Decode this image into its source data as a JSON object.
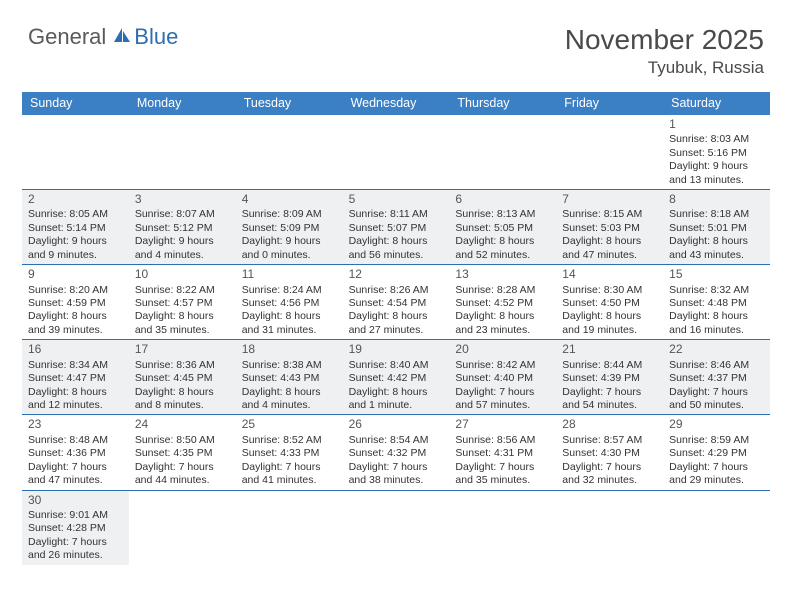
{
  "logo": {
    "general": "General",
    "blue": "Blue",
    "sail_color": "#2c6fb0"
  },
  "title": "November 2025",
  "location": "Tyubuk, Russia",
  "colors": {
    "header_bg": "#3b7fc4",
    "header_text": "#ffffff",
    "cell_border": "#2c6fb0",
    "shade_bg": "#eef0f1",
    "text": "#333333"
  },
  "day_names": [
    "Sunday",
    "Monday",
    "Tuesday",
    "Wednesday",
    "Thursday",
    "Friday",
    "Saturday"
  ],
  "weeks": [
    [
      {
        "blank": true
      },
      {
        "blank": true
      },
      {
        "blank": true
      },
      {
        "blank": true
      },
      {
        "blank": true
      },
      {
        "blank": true
      },
      {
        "day": "1",
        "sunrise": "Sunrise: 8:03 AM",
        "sunset": "Sunset: 5:16 PM",
        "daylight1": "Daylight: 9 hours",
        "daylight2": "and 13 minutes.",
        "shade": false
      }
    ],
    [
      {
        "day": "2",
        "sunrise": "Sunrise: 8:05 AM",
        "sunset": "Sunset: 5:14 PM",
        "daylight1": "Daylight: 9 hours",
        "daylight2": "and 9 minutes.",
        "shade": true
      },
      {
        "day": "3",
        "sunrise": "Sunrise: 8:07 AM",
        "sunset": "Sunset: 5:12 PM",
        "daylight1": "Daylight: 9 hours",
        "daylight2": "and 4 minutes.",
        "shade": true
      },
      {
        "day": "4",
        "sunrise": "Sunrise: 8:09 AM",
        "sunset": "Sunset: 5:09 PM",
        "daylight1": "Daylight: 9 hours",
        "daylight2": "and 0 minutes.",
        "shade": true
      },
      {
        "day": "5",
        "sunrise": "Sunrise: 8:11 AM",
        "sunset": "Sunset: 5:07 PM",
        "daylight1": "Daylight: 8 hours",
        "daylight2": "and 56 minutes.",
        "shade": true
      },
      {
        "day": "6",
        "sunrise": "Sunrise: 8:13 AM",
        "sunset": "Sunset: 5:05 PM",
        "daylight1": "Daylight: 8 hours",
        "daylight2": "and 52 minutes.",
        "shade": true
      },
      {
        "day": "7",
        "sunrise": "Sunrise: 8:15 AM",
        "sunset": "Sunset: 5:03 PM",
        "daylight1": "Daylight: 8 hours",
        "daylight2": "and 47 minutes.",
        "shade": true
      },
      {
        "day": "8",
        "sunrise": "Sunrise: 8:18 AM",
        "sunset": "Sunset: 5:01 PM",
        "daylight1": "Daylight: 8 hours",
        "daylight2": "and 43 minutes.",
        "shade": true
      }
    ],
    [
      {
        "day": "9",
        "sunrise": "Sunrise: 8:20 AM",
        "sunset": "Sunset: 4:59 PM",
        "daylight1": "Daylight: 8 hours",
        "daylight2": "and 39 minutes.",
        "shade": false
      },
      {
        "day": "10",
        "sunrise": "Sunrise: 8:22 AM",
        "sunset": "Sunset: 4:57 PM",
        "daylight1": "Daylight: 8 hours",
        "daylight2": "and 35 minutes.",
        "shade": false
      },
      {
        "day": "11",
        "sunrise": "Sunrise: 8:24 AM",
        "sunset": "Sunset: 4:56 PM",
        "daylight1": "Daylight: 8 hours",
        "daylight2": "and 31 minutes.",
        "shade": false
      },
      {
        "day": "12",
        "sunrise": "Sunrise: 8:26 AM",
        "sunset": "Sunset: 4:54 PM",
        "daylight1": "Daylight: 8 hours",
        "daylight2": "and 27 minutes.",
        "shade": false
      },
      {
        "day": "13",
        "sunrise": "Sunrise: 8:28 AM",
        "sunset": "Sunset: 4:52 PM",
        "daylight1": "Daylight: 8 hours",
        "daylight2": "and 23 minutes.",
        "shade": false
      },
      {
        "day": "14",
        "sunrise": "Sunrise: 8:30 AM",
        "sunset": "Sunset: 4:50 PM",
        "daylight1": "Daylight: 8 hours",
        "daylight2": "and 19 minutes.",
        "shade": false
      },
      {
        "day": "15",
        "sunrise": "Sunrise: 8:32 AM",
        "sunset": "Sunset: 4:48 PM",
        "daylight1": "Daylight: 8 hours",
        "daylight2": "and 16 minutes.",
        "shade": false
      }
    ],
    [
      {
        "day": "16",
        "sunrise": "Sunrise: 8:34 AM",
        "sunset": "Sunset: 4:47 PM",
        "daylight1": "Daylight: 8 hours",
        "daylight2": "and 12 minutes.",
        "shade": true
      },
      {
        "day": "17",
        "sunrise": "Sunrise: 8:36 AM",
        "sunset": "Sunset: 4:45 PM",
        "daylight1": "Daylight: 8 hours",
        "daylight2": "and 8 minutes.",
        "shade": true
      },
      {
        "day": "18",
        "sunrise": "Sunrise: 8:38 AM",
        "sunset": "Sunset: 4:43 PM",
        "daylight1": "Daylight: 8 hours",
        "daylight2": "and 4 minutes.",
        "shade": true
      },
      {
        "day": "19",
        "sunrise": "Sunrise: 8:40 AM",
        "sunset": "Sunset: 4:42 PM",
        "daylight1": "Daylight: 8 hours",
        "daylight2": "and 1 minute.",
        "shade": true
      },
      {
        "day": "20",
        "sunrise": "Sunrise: 8:42 AM",
        "sunset": "Sunset: 4:40 PM",
        "daylight1": "Daylight: 7 hours",
        "daylight2": "and 57 minutes.",
        "shade": true
      },
      {
        "day": "21",
        "sunrise": "Sunrise: 8:44 AM",
        "sunset": "Sunset: 4:39 PM",
        "daylight1": "Daylight: 7 hours",
        "daylight2": "and 54 minutes.",
        "shade": true
      },
      {
        "day": "22",
        "sunrise": "Sunrise: 8:46 AM",
        "sunset": "Sunset: 4:37 PM",
        "daylight1": "Daylight: 7 hours",
        "daylight2": "and 50 minutes.",
        "shade": true
      }
    ],
    [
      {
        "day": "23",
        "sunrise": "Sunrise: 8:48 AM",
        "sunset": "Sunset: 4:36 PM",
        "daylight1": "Daylight: 7 hours",
        "daylight2": "and 47 minutes.",
        "shade": false
      },
      {
        "day": "24",
        "sunrise": "Sunrise: 8:50 AM",
        "sunset": "Sunset: 4:35 PM",
        "daylight1": "Daylight: 7 hours",
        "daylight2": "and 44 minutes.",
        "shade": false
      },
      {
        "day": "25",
        "sunrise": "Sunrise: 8:52 AM",
        "sunset": "Sunset: 4:33 PM",
        "daylight1": "Daylight: 7 hours",
        "daylight2": "and 41 minutes.",
        "shade": false
      },
      {
        "day": "26",
        "sunrise": "Sunrise: 8:54 AM",
        "sunset": "Sunset: 4:32 PM",
        "daylight1": "Daylight: 7 hours",
        "daylight2": "and 38 minutes.",
        "shade": false
      },
      {
        "day": "27",
        "sunrise": "Sunrise: 8:56 AM",
        "sunset": "Sunset: 4:31 PM",
        "daylight1": "Daylight: 7 hours",
        "daylight2": "and 35 minutes.",
        "shade": false
      },
      {
        "day": "28",
        "sunrise": "Sunrise: 8:57 AM",
        "sunset": "Sunset: 4:30 PM",
        "daylight1": "Daylight: 7 hours",
        "daylight2": "and 32 minutes.",
        "shade": false
      },
      {
        "day": "29",
        "sunrise": "Sunrise: 8:59 AM",
        "sunset": "Sunset: 4:29 PM",
        "daylight1": "Daylight: 7 hours",
        "daylight2": "and 29 minutes.",
        "shade": false
      }
    ],
    [
      {
        "day": "30",
        "sunrise": "Sunrise: 9:01 AM",
        "sunset": "Sunset: 4:28 PM",
        "daylight1": "Daylight: 7 hours",
        "daylight2": "and 26 minutes.",
        "shade": true
      },
      {
        "blank": true
      },
      {
        "blank": true
      },
      {
        "blank": true
      },
      {
        "blank": true
      },
      {
        "blank": true
      },
      {
        "blank": true
      }
    ]
  ]
}
